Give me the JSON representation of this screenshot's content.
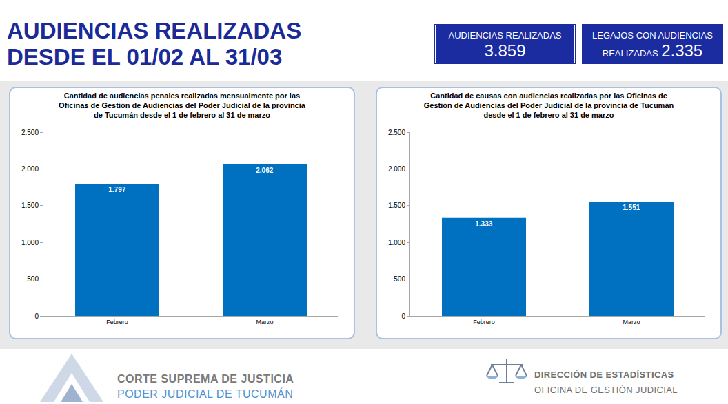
{
  "header": {
    "title_lines": [
      "AUDIENCIAS REALIZADAS",
      "DESDE EL 01/02 AL 31/03"
    ]
  },
  "kpis": [
    {
      "label": "AUDIENCIAS REALIZADAS",
      "value": "3.859"
    },
    {
      "label": "LEGAJOS CON AUDIENCIAS REALIZADAS",
      "value": "2.335"
    }
  ],
  "chart_data": [
    {
      "type": "bar",
      "title": "Cantidad de audiencias penales realizadas mensualmente por las Oficinas de Gestión de Audiencias del Poder Judicial de la provincia de Tucumán desde el 1 de febrero al 31 de marzo",
      "categories": [
        "Febrero",
        "Marzo"
      ],
      "values": [
        1797,
        2062
      ],
      "value_labels": [
        "1.797",
        "2.062"
      ],
      "color": "#0070c0",
      "ylim": [
        0,
        2500
      ],
      "yticks": [
        0,
        500,
        {
          "value": 1000,
          "label": "1.000"
        },
        {
          "value": 1500,
          "label": "1.500"
        },
        {
          "value": 2000,
          "label": "2.000"
        },
        {
          "value": 2500,
          "label": "2.500"
        }
      ],
      "grid": false,
      "data_labels": true
    },
    {
      "type": "bar",
      "title": "Cantidad de causas con audiencias realizadas por las Oficinas de Gestión de Audiencias del Poder Judicial de la provincia de Tucumán desde el 1 de febrero al 31 de marzo",
      "categories": [
        "Febrero",
        "Marzo"
      ],
      "values": [
        1333,
        1551
      ],
      "value_labels": [
        "1.333",
        "1.551"
      ],
      "color": "#0070c0",
      "ylim": [
        0,
        2500
      ],
      "yticks": [
        0,
        500,
        {
          "value": 1000,
          "label": "1.000"
        },
        {
          "value": 1500,
          "label": "1.500"
        },
        {
          "value": 2000,
          "label": "2.000"
        },
        {
          "value": 2500,
          "label": "2.500"
        }
      ],
      "grid": false,
      "data_labels": true
    }
  ],
  "footer": {
    "left": [
      "CORTE SUPREMA DE JUSTICIA",
      "PODER JUDICIAL DE TUCUMÁN"
    ],
    "right": [
      "DIRECCIÓN DE ESTADÍSTICAS",
      "OFICINA DE GESTIÓN JUDICIAL"
    ]
  }
}
